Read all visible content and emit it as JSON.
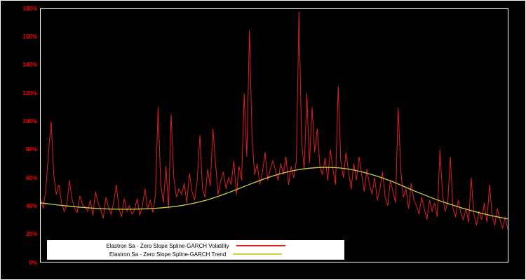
{
  "chart_data": {
    "type": "line",
    "title": "",
    "xlabel": "",
    "ylabel": "",
    "ylim": [
      0,
      180
    ],
    "grid": false,
    "legend_position": "bottom-left",
    "background_color": "#000000",
    "frame_color": "#ffffff",
    "axis_label_color": "#ff0000",
    "yticks": [
      {
        "value": 0,
        "label": "0%"
      },
      {
        "value": 20,
        "label": "20%"
      },
      {
        "value": 40,
        "label": "40%"
      },
      {
        "value": 60,
        "label": "60%"
      },
      {
        "value": 80,
        "label": "80%"
      },
      {
        "value": 100,
        "label": "100%"
      },
      {
        "value": 120,
        "label": "120%"
      },
      {
        "value": 140,
        "label": "140%"
      },
      {
        "value": 160,
        "label": "160%"
      },
      {
        "value": 180,
        "label": "180%"
      }
    ],
    "series": [
      {
        "name": "Elastron Sa - Zero Slope Spline-GARCH Volatility",
        "color": "#dd1f1f",
        "unit": "%",
        "values": [
          44,
          38,
          52,
          78,
          100,
          62,
          48,
          55,
          42,
          36,
          40,
          58,
          45,
          38,
          35,
          47,
          41,
          39,
          36,
          44,
          33,
          50,
          42,
          37,
          31,
          46,
          39,
          34,
          43,
          55,
          38,
          32,
          45,
          36,
          40,
          34,
          37,
          45,
          33,
          40,
          52,
          38,
          44,
          35,
          48,
          110,
          55,
          42,
          68,
          38,
          105,
          60,
          46,
          52,
          48,
          56,
          42,
          63,
          50,
          44,
          58,
          90,
          52,
          46,
          66,
          54,
          95,
          70,
          48,
          58,
          64,
          52,
          60,
          55,
          72,
          48,
          68,
          58,
          120,
          75,
          165,
          88,
          62,
          70,
          55,
          64,
          78,
          58,
          66,
          72,
          65,
          58,
          70,
          62,
          75,
          55,
          68,
          60,
          72,
          178,
          85,
          66,
          120,
          70,
          110,
          78,
          95,
          68,
          62,
          74,
          58,
          80,
          66,
          55,
          125,
          72,
          60,
          78,
          64,
          52,
          70,
          58,
          75,
          62,
          50,
          66,
          55,
          48,
          60,
          44,
          52,
          64,
          46,
          40,
          58,
          50,
          42,
          110,
          65,
          46,
          52,
          38,
          56,
          44,
          40,
          34,
          46,
          38,
          30,
          44,
          36,
          42,
          32,
          80,
          48,
          36,
          42,
          75,
          38,
          32,
          44,
          35,
          30,
          38,
          28,
          60,
          34,
          26,
          36,
          30,
          42,
          28,
          55,
          33,
          26,
          38,
          30,
          24,
          32,
          23
        ]
      },
      {
        "name": "Elastron Sa - Zero Slope Spline-GARCH Trend",
        "color": "#d0d040",
        "unit": "%",
        "values": [
          42,
          40,
          38.5,
          37.6,
          37.5,
          38.2,
          40,
          43.5,
          49,
          55.5,
          61.5,
          65.5,
          67.2,
          66.5,
          63,
          57.5,
          50.5,
          44,
          38.5,
          34,
          30.5
        ]
      }
    ]
  }
}
